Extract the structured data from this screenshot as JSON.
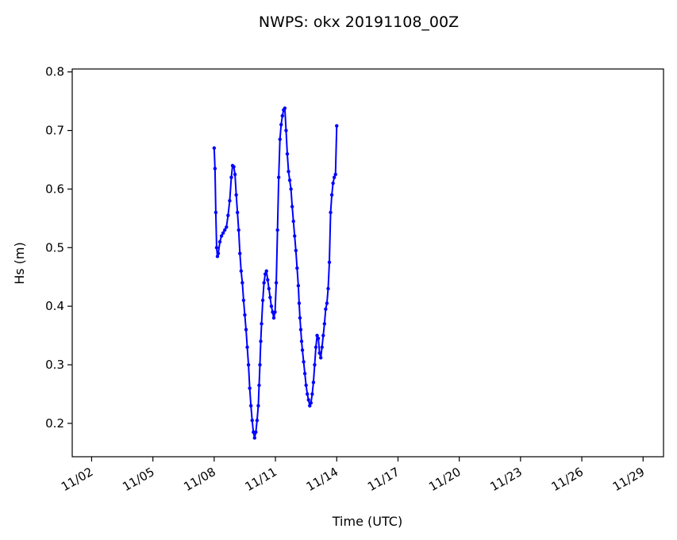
{
  "chart_data": {
    "type": "line",
    "title": "NWPS: okx 20191108_00Z",
    "xlabel": "Time (UTC)",
    "ylabel": "Hs (m)",
    "x_tick_labels": [
      "11/02",
      "11/05",
      "11/08",
      "11/11",
      "11/14",
      "11/17",
      "11/20",
      "11/23",
      "11/26",
      "11/29"
    ],
    "x_tick_days": [
      2,
      5,
      8,
      11,
      14,
      17,
      20,
      23,
      26,
      29
    ],
    "xlim": [
      1.05,
      30.0
    ],
    "y_tick_labels": [
      "0.2",
      "0.3",
      "0.4",
      "0.5",
      "0.6",
      "0.7",
      "0.8"
    ],
    "y_tick_values": [
      0.2,
      0.3,
      0.4,
      0.5,
      0.6,
      0.7,
      0.8
    ],
    "ylim": [
      0.143,
      0.805
    ],
    "grid": false,
    "series_color": "#0000ff",
    "series": [
      {
        "x": [
          8.0,
          8.04,
          8.08,
          8.12,
          8.16,
          8.2,
          8.28,
          8.36,
          8.44,
          8.52,
          8.6,
          8.68,
          8.76,
          8.84,
          8.9,
          8.96,
          9.02,
          9.08,
          9.14,
          9.2,
          9.26,
          9.32,
          9.38,
          9.44,
          9.5,
          9.56,
          9.62,
          9.68,
          9.74,
          9.8,
          9.86,
          9.92,
          9.98,
          10.04,
          10.1,
          10.16,
          10.2,
          10.24,
          10.28,
          10.32,
          10.38,
          10.44,
          10.5,
          10.56,
          10.62,
          10.68,
          10.74,
          10.8,
          10.86,
          10.92,
          10.98,
          11.04,
          11.1,
          11.16,
          11.22,
          11.28,
          11.34,
          11.4,
          11.46,
          11.52,
          11.58,
          11.64,
          11.7,
          11.76,
          11.82,
          11.88,
          11.94,
          12.0,
          12.06,
          12.12,
          12.16,
          12.2,
          12.24,
          12.28,
          12.32,
          12.38,
          12.44,
          12.5,
          12.56,
          12.62,
          12.68,
          12.74,
          12.8,
          12.86,
          12.92,
          12.98,
          13.04,
          13.1,
          13.16,
          13.22,
          13.28,
          13.34,
          13.4,
          13.46,
          13.52,
          13.58,
          13.64,
          13.7,
          13.76,
          13.82,
          13.88,
          13.94,
          14.0
        ],
        "y": [
          0.67,
          0.635,
          0.56,
          0.5,
          0.485,
          0.49,
          0.51,
          0.52,
          0.525,
          0.53,
          0.535,
          0.555,
          0.58,
          0.62,
          0.64,
          0.638,
          0.625,
          0.59,
          0.56,
          0.53,
          0.49,
          0.46,
          0.44,
          0.41,
          0.385,
          0.36,
          0.33,
          0.3,
          0.26,
          0.23,
          0.205,
          0.185,
          0.175,
          0.185,
          0.205,
          0.23,
          0.265,
          0.3,
          0.34,
          0.37,
          0.41,
          0.44,
          0.455,
          0.46,
          0.445,
          0.43,
          0.415,
          0.4,
          0.39,
          0.38,
          0.39,
          0.44,
          0.53,
          0.62,
          0.685,
          0.71,
          0.725,
          0.735,
          0.738,
          0.7,
          0.66,
          0.63,
          0.615,
          0.6,
          0.57,
          0.545,
          0.52,
          0.495,
          0.465,
          0.435,
          0.405,
          0.38,
          0.36,
          0.34,
          0.325,
          0.305,
          0.285,
          0.265,
          0.25,
          0.24,
          0.23,
          0.235,
          0.25,
          0.27,
          0.3,
          0.33,
          0.35,
          0.345,
          0.32,
          0.312,
          0.33,
          0.35,
          0.37,
          0.395,
          0.405,
          0.43,
          0.475,
          0.56,
          0.59,
          0.61,
          0.62,
          0.625,
          0.708
        ]
      }
    ]
  }
}
